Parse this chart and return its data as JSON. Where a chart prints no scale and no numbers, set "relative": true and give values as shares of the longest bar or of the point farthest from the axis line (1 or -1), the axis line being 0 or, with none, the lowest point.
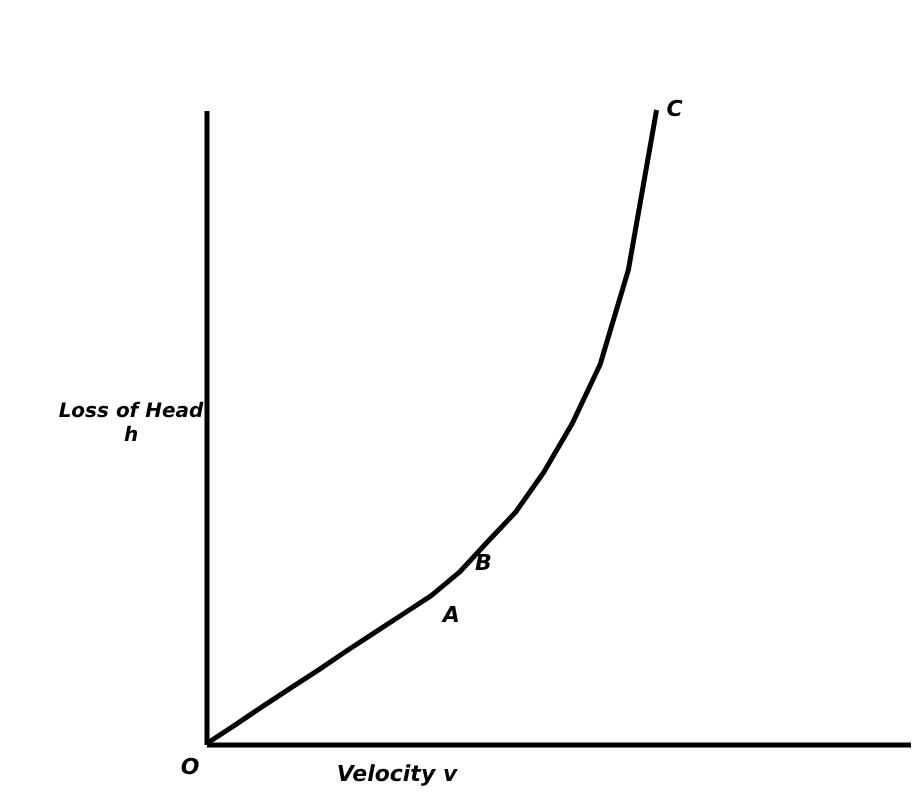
{
  "chart_data": {
    "type": "line",
    "relative": true,
    "xlabel": "Velocity v",
    "ylabel": "Loss of Head\nh",
    "grid": false,
    "categories": [
      null,
      null,
      null,
      null,
      null,
      null,
      null,
      null,
      null,
      null,
      null,
      null,
      null,
      null,
      null,
      null,
      null,
      null,
      null,
      null,
      null,
      null,
      null,
      null,
      null,
      null
    ],
    "series": [
      {
        "color": "#000000",
        "values": [
          0,
          0.029,
          0.059,
          0.088,
          0.117,
          0.147,
          0.176,
          0.205,
          0.234,
          0.271,
          0.319,
          0.366,
          0.429,
          0.505,
          0.599,
          0.748,
          1.0,
          null,
          null,
          null,
          null,
          null,
          null,
          null,
          null,
          null
        ]
      }
    ],
    "annotations": [
      "O",
      "A",
      "B",
      "C"
    ]
  }
}
